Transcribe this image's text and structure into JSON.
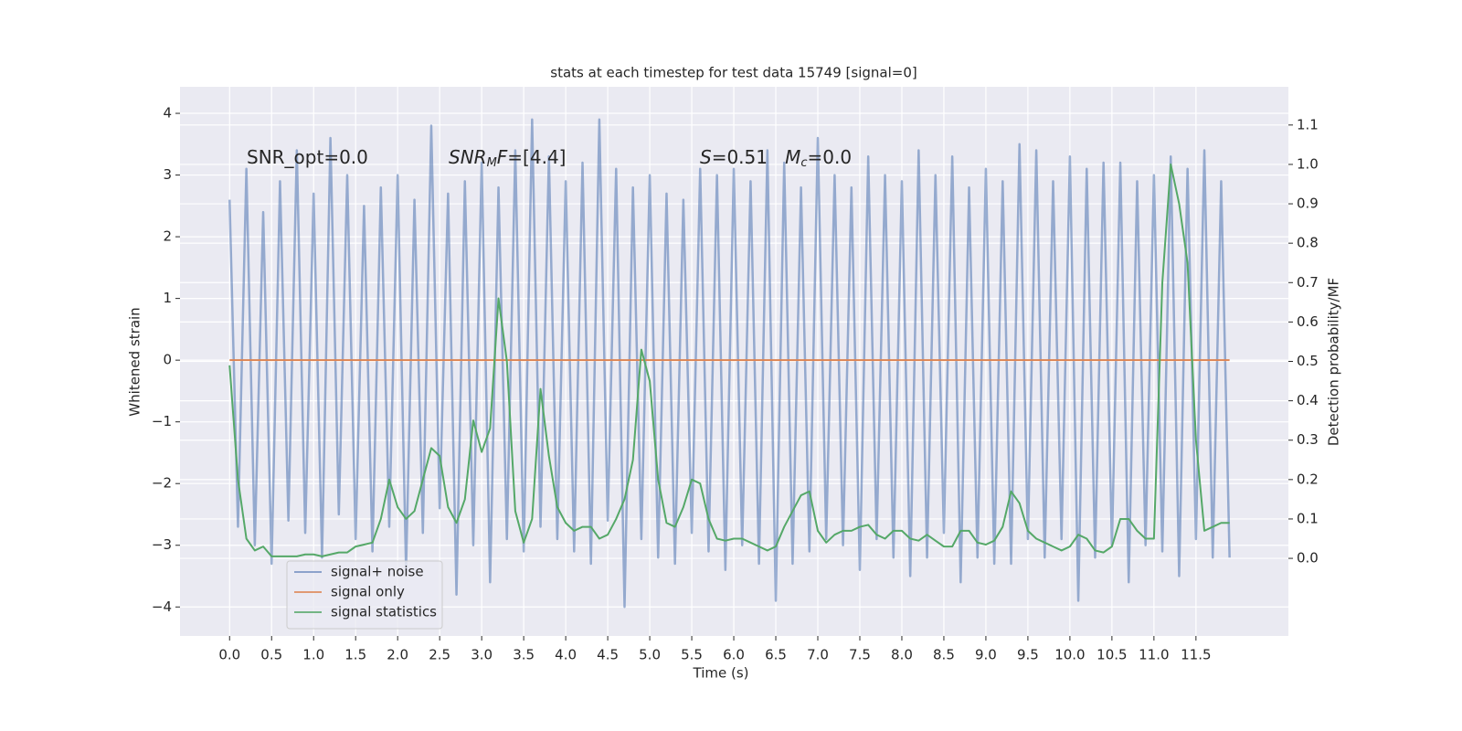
{
  "chart_data": {
    "type": "line",
    "title": "stats at each timestep for test data 15749 [signal=0]",
    "xlabel": "Time (s)",
    "ylabel": "Whitened strain",
    "y2label": "Detection probability/MF",
    "annotations": [
      {
        "parts": [
          "SNR_opt=0.0"
        ]
      },
      {
        "parts": [
          "SNR",
          "M",
          "F",
          "=[4.4]"
        ]
      },
      {
        "parts": [
          "S",
          "=0.51   ",
          "M",
          "c",
          "=0.0"
        ]
      }
    ],
    "legend": "lower left",
    "grid": true,
    "x": [
      0.0,
      0.1,
      0.2,
      0.3,
      0.4,
      0.5,
      0.6,
      0.7,
      0.8,
      0.9,
      1.0,
      1.1,
      1.2,
      1.3,
      1.4,
      1.5,
      1.6,
      1.7,
      1.8,
      1.9,
      2.0,
      2.1,
      2.2,
      2.3,
      2.4,
      2.5,
      2.6,
      2.7,
      2.8,
      2.9,
      3.0,
      3.1,
      3.2,
      3.3,
      3.4,
      3.5,
      3.6,
      3.7,
      3.8,
      3.9,
      4.0,
      4.1,
      4.2,
      4.3,
      4.4,
      4.5,
      4.6,
      4.7,
      4.8,
      4.9,
      5.0,
      5.1,
      5.2,
      5.3,
      5.4,
      5.5,
      5.6,
      5.7,
      5.8,
      5.9,
      6.0,
      6.1,
      6.2,
      6.3,
      6.4,
      6.5,
      6.6,
      6.7,
      6.8,
      6.9,
      7.0,
      7.1,
      7.2,
      7.3,
      7.4,
      7.5,
      7.6,
      7.7,
      7.8,
      7.9,
      8.0,
      8.1,
      8.2,
      8.3,
      8.4,
      8.5,
      8.6,
      8.7,
      8.8,
      8.9,
      9.0,
      9.1,
      9.2,
      9.3,
      9.4,
      9.5,
      9.6,
      9.7,
      9.8,
      9.9,
      10.0,
      10.1,
      10.2,
      10.3,
      10.4,
      10.5,
      10.6,
      10.7,
      10.8,
      10.9,
      11.0,
      11.1,
      11.2,
      11.3,
      11.4,
      11.5,
      11.6,
      11.7,
      11.8,
      11.9
    ],
    "series": [
      {
        "name": "signal+ noise",
        "color": "#4c72b0",
        "axis": "y",
        "values": [
          2.6,
          -2.7,
          3.1,
          -3.0,
          2.4,
          -3.3,
          2.9,
          -2.6,
          3.4,
          -2.8,
          2.7,
          -3.2,
          3.6,
          -2.5,
          3.0,
          -2.9,
          2.5,
          -3.1,
          2.8,
          -2.7,
          3.0,
          -3.4,
          2.6,
          -2.8,
          3.8,
          -2.4,
          2.7,
          -3.8,
          2.9,
          -3.0,
          3.2,
          -3.6,
          2.8,
          -2.9,
          3.4,
          -3.1,
          3.9,
          -2.7,
          3.3,
          -2.9,
          2.9,
          -3.1,
          3.2,
          -3.3,
          3.9,
          -2.6,
          3.1,
          -4.0,
          2.8,
          -2.9,
          3.0,
          -3.2,
          2.7,
          -3.3,
          2.6,
          -2.8,
          3.1,
          -3.1,
          3.0,
          -3.4,
          3.1,
          -3.0,
          2.9,
          -3.3,
          3.4,
          -3.9,
          3.2,
          -3.3,
          2.8,
          -3.1,
          3.6,
          -2.9,
          3.0,
          -3.0,
          2.8,
          -3.4,
          3.3,
          -2.9,
          3.0,
          -3.2,
          2.9,
          -3.5,
          3.4,
          -3.2,
          3.0,
          -2.8,
          3.3,
          -3.6,
          2.8,
          -3.2,
          3.1,
          -3.3,
          2.9,
          -3.3,
          3.5,
          -2.9,
          3.4,
          -3.2,
          2.9,
          -2.9,
          3.3,
          -3.9,
          3.1,
          -3.2,
          3.2,
          -3.0,
          3.2,
          -3.6,
          2.9,
          -3.0,
          3.0,
          -3.1,
          3.3,
          -3.5,
          3.1,
          -2.9,
          3.4,
          -3.2,
          2.9,
          -3.2
        ]
      },
      {
        "name": "signal only",
        "color": "#dd8452",
        "axis": "y",
        "values": [
          0,
          0,
          0,
          0,
          0,
          0,
          0,
          0,
          0,
          0,
          0,
          0,
          0,
          0,
          0,
          0,
          0,
          0,
          0,
          0,
          0,
          0,
          0,
          0,
          0,
          0,
          0,
          0,
          0,
          0,
          0,
          0,
          0,
          0,
          0,
          0,
          0,
          0,
          0,
          0,
          0,
          0,
          0,
          0,
          0,
          0,
          0,
          0,
          0,
          0,
          0,
          0,
          0,
          0,
          0,
          0,
          0,
          0,
          0,
          0,
          0,
          0,
          0,
          0,
          0,
          0,
          0,
          0,
          0,
          0,
          0,
          0,
          0,
          0,
          0,
          0,
          0,
          0,
          0,
          0,
          0,
          0,
          0,
          0,
          0,
          0,
          0,
          0,
          0,
          0,
          0,
          0,
          0,
          0,
          0,
          0,
          0,
          0,
          0,
          0,
          0,
          0,
          0,
          0,
          0,
          0,
          0,
          0,
          0,
          0,
          0,
          0,
          0,
          0,
          0,
          0,
          0,
          0,
          0,
          0
        ]
      },
      {
        "name": "signal statistics",
        "color": "#55a868",
        "axis": "y2",
        "values": [
          0.49,
          0.2,
          0.05,
          0.02,
          0.03,
          0.005,
          0.005,
          0.005,
          0.005,
          0.01,
          0.01,
          0.005,
          0.01,
          0.015,
          0.015,
          0.03,
          0.035,
          0.04,
          0.1,
          0.2,
          0.13,
          0.1,
          0.12,
          0.2,
          0.28,
          0.26,
          0.13,
          0.09,
          0.15,
          0.35,
          0.27,
          0.33,
          0.66,
          0.5,
          0.12,
          0.04,
          0.1,
          0.43,
          0.26,
          0.13,
          0.09,
          0.07,
          0.08,
          0.08,
          0.05,
          0.06,
          0.1,
          0.15,
          0.25,
          0.53,
          0.45,
          0.2,
          0.09,
          0.08,
          0.13,
          0.2,
          0.19,
          0.1,
          0.05,
          0.045,
          0.05,
          0.05,
          0.04,
          0.03,
          0.02,
          0.03,
          0.08,
          0.12,
          0.16,
          0.17,
          0.07,
          0.04,
          0.06,
          0.07,
          0.07,
          0.08,
          0.085,
          0.06,
          0.05,
          0.07,
          0.07,
          0.05,
          0.045,
          0.06,
          0.045,
          0.03,
          0.03,
          0.07,
          0.07,
          0.04,
          0.035,
          0.045,
          0.08,
          0.17,
          0.14,
          0.07,
          0.05,
          0.04,
          0.03,
          0.02,
          0.03,
          0.06,
          0.05,
          0.02,
          0.015,
          0.03,
          0.1,
          0.1,
          0.07,
          0.05,
          0.05,
          0.7,
          1.0,
          0.9,
          0.75,
          0.3,
          0.07,
          0.08,
          0.09,
          0.09
        ]
      }
    ],
    "xlim": [
      -0.59,
      12.6
    ],
    "xticks": [
      {
        "value": 0,
        "label": "0.0"
      },
      0.5,
      {
        "value": 1,
        "label": "1.0"
      },
      1.5,
      {
        "value": 2,
        "label": "2.0"
      },
      2.5,
      {
        "value": 3,
        "label": "3.0"
      },
      3.5,
      {
        "value": 4,
        "label": "4.0"
      },
      4.5,
      {
        "value": 5,
        "label": "5.0"
      },
      5.5,
      {
        "value": 6,
        "label": "6.0"
      },
      6.5,
      {
        "value": 7,
        "label": "7.0"
      },
      7.5,
      {
        "value": 8,
        "label": "8.0"
      },
      8.5,
      {
        "value": 9,
        "label": "9.0"
      },
      9.5,
      {
        "value": 10,
        "label": "10.0"
      },
      10.5,
      {
        "value": 11,
        "label": "11.0"
      },
      11.5
    ],
    "ylim": [
      -4.47,
      4.43
    ],
    "yticks": [
      {
        "value": -4,
        "label": "−4"
      },
      {
        "value": -3,
        "label": "−3"
      },
      {
        "value": -2,
        "label": "−2"
      },
      {
        "value": -1,
        "label": "−1"
      },
      0,
      1,
      2,
      3,
      4
    ],
    "y2lim": [
      -0.197,
      1.197
    ],
    "y2ticks": [
      {
        "value": 0,
        "label": "0.0"
      },
      0.1,
      0.2,
      0.3,
      0.4,
      0.5,
      0.6,
      0.7,
      0.8,
      0.9,
      {
        "value": 1,
        "label": "1.0"
      },
      1.1
    ]
  }
}
